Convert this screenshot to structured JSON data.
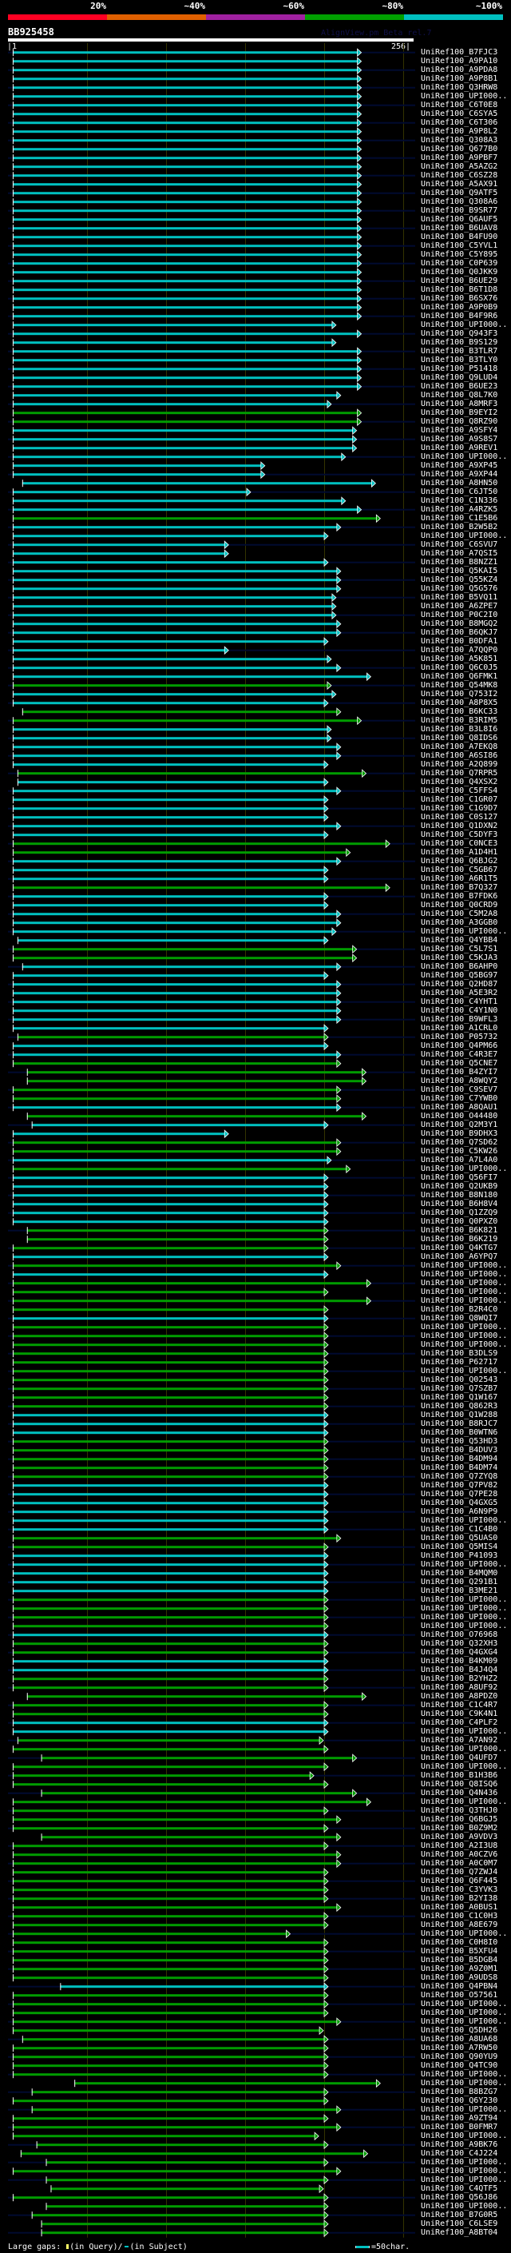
{
  "header": {
    "percent_labels": [
      "20%",
      "~40%",
      "~60%",
      "~80%",
      "~100%"
    ],
    "percent_colors": [
      "#ff0022",
      "#e06000",
      "#a020a0",
      "#00a000",
      "#00c0c0"
    ],
    "query_id": "BB925458",
    "credit": "AlignView.pm Beta rel.7",
    "query_start": "|1",
    "query_end": "256|"
  },
  "colors": {
    "c": "#00c0c0",
    "g": "#009c00",
    "unaligned": "#000a30",
    "grid": "#333300"
  },
  "query_length": 256,
  "rows": [
    [
      "UniRef100_B7FJC3",
      "c",
      4,
      222
    ],
    [
      "UniRef100_A9PA10",
      "c",
      4,
      222
    ],
    [
      "UniRef100_A9PDA8",
      "c",
      4,
      222
    ],
    [
      "UniRef100_A9P8B1",
      "c",
      4,
      222
    ],
    [
      "UniRef100_Q3HRW8",
      "c",
      4,
      222
    ],
    [
      "UniRef100_UPI000..",
      "c",
      4,
      222
    ],
    [
      "UniRef100_C6T0E8",
      "c",
      4,
      222
    ],
    [
      "UniRef100_C6SYA5",
      "c",
      4,
      222
    ],
    [
      "UniRef100_C6T306",
      "c",
      4,
      222
    ],
    [
      "UniRef100_A9P8L2",
      "c",
      4,
      222
    ],
    [
      "UniRef100_Q308A3",
      "c",
      4,
      222
    ],
    [
      "UniRef100_Q677B0",
      "c",
      4,
      222
    ],
    [
      "UniRef100_A9PBF7",
      "c",
      4,
      222
    ],
    [
      "UniRef100_A5AZG2",
      "c",
      4,
      222
    ],
    [
      "UniRef100_C6SZ28",
      "c",
      4,
      222
    ],
    [
      "UniRef100_A5AX91",
      "c",
      4,
      222
    ],
    [
      "UniRef100_Q9ATF5",
      "c",
      4,
      222
    ],
    [
      "UniRef100_Q308A6",
      "c",
      4,
      222
    ],
    [
      "UniRef100_B9SR77",
      "c",
      4,
      222
    ],
    [
      "UniRef100_Q6AUF5",
      "c",
      4,
      222
    ],
    [
      "UniRef100_B6UAV8",
      "c",
      4,
      222
    ],
    [
      "UniRef100_B4FU90",
      "c",
      4,
      222
    ],
    [
      "UniRef100_C5YVL1",
      "c",
      4,
      222
    ],
    [
      "UniRef100_C5Y895",
      "c",
      4,
      222
    ],
    [
      "UniRef100_C0P639",
      "c",
      4,
      222
    ],
    [
      "UniRef100_Q0JKK9",
      "c",
      4,
      222
    ],
    [
      "UniRef100_B6UE29",
      "c",
      4,
      222
    ],
    [
      "UniRef100_B6T1D8",
      "c",
      4,
      222
    ],
    [
      "UniRef100_B6SX76",
      "c",
      4,
      222
    ],
    [
      "UniRef100_A9P0B9",
      "c",
      4,
      222
    ],
    [
      "UniRef100_B4F9R6",
      "c",
      4,
      222
    ],
    [
      "UniRef100_UPI000..",
      "c",
      4,
      206
    ],
    [
      "UniRef100_Q943F3",
      "c",
      4,
      222
    ],
    [
      "UniRef100_B9S129",
      "c",
      4,
      206
    ],
    [
      "UniRef100_B3TLR7",
      "c",
      4,
      222
    ],
    [
      "UniRef100_B3TLY0",
      "c",
      4,
      222
    ],
    [
      "UniRef100_P51418",
      "c",
      4,
      222
    ],
    [
      "UniRef100_Q9LUD4",
      "c",
      4,
      222
    ],
    [
      "UniRef100_B6UE23",
      "c",
      4,
      222
    ],
    [
      "UniRef100_Q8L7K0",
      "c",
      4,
      209
    ],
    [
      "UniRef100_A8MRF3",
      "c",
      4,
      203
    ],
    [
      "UniRef100_B9EYI2",
      "g",
      4,
      222
    ],
    [
      "UniRef100_Q8RZ90",
      "g",
      4,
      222
    ],
    [
      "UniRef100_A9SFY4",
      "c",
      4,
      219
    ],
    [
      "UniRef100_A9S8S7",
      "c",
      4,
      219
    ],
    [
      "UniRef100_A9REV1",
      "c",
      4,
      219
    ],
    [
      "UniRef100_UPI000..",
      "c",
      4,
      212
    ],
    [
      "UniRef100_A9XP45",
      "c",
      4,
      161
    ],
    [
      "UniRef100_A9XP44",
      "c",
      4,
      161
    ],
    [
      "UniRef100_A8HN50",
      "c",
      10,
      231
    ],
    [
      "UniRef100_C6JT50",
      "c",
      4,
      152
    ],
    [
      "UniRef100_C1N336",
      "c",
      4,
      212
    ],
    [
      "UniRef100_A4RZK5",
      "c",
      4,
      222
    ],
    [
      "UniRef100_C1E5B6",
      "g",
      4,
      234
    ],
    [
      "UniRef100_B2W5B2",
      "c",
      4,
      209
    ],
    [
      "UniRef100_UPI000..",
      "c",
      4,
      201
    ],
    [
      "UniRef100_C6SVU7",
      "c",
      4,
      138
    ],
    [
      "UniRef100_A7QSI5",
      "c",
      4,
      138
    ],
    [
      "UniRef100_B8NZZ1",
      "c",
      4,
      201
    ],
    [
      "UniRef100_Q5KAI5",
      "c",
      4,
      209
    ],
    [
      "UniRef100_Q55KZ4",
      "c",
      4,
      209
    ],
    [
      "UniRef100_Q5G576",
      "c",
      4,
      209
    ],
    [
      "UniRef100_B5VQ11",
      "c",
      4,
      206
    ],
    [
      "UniRef100_A6ZPE7",
      "c",
      4,
      206
    ],
    [
      "UniRef100_P0C2I0",
      "c",
      4,
      206
    ],
    [
      "UniRef100_B8MGQ2",
      "c",
      4,
      209
    ],
    [
      "UniRef100_B6QKJ7",
      "c",
      4,
      209
    ],
    [
      "UniRef100_B0DFA1",
      "c",
      4,
      201
    ],
    [
      "UniRef100_A7QQP0",
      "c",
      4,
      138
    ],
    [
      "UniRef100_A5K851",
      "c",
      4,
      203
    ],
    [
      "UniRef100_Q6C0J5",
      "c",
      4,
      209
    ],
    [
      "UniRef100_Q6FMK1",
      "c",
      4,
      228
    ],
    [
      "UniRef100_Q54MK8",
      "g",
      4,
      203
    ],
    [
      "UniRef100_Q753I2",
      "c",
      4,
      206
    ],
    [
      "UniRef100_A8P8X5",
      "c",
      4,
      201
    ],
    [
      "UniRef100_B6KC33",
      "g",
      10,
      209
    ],
    [
      "UniRef100_B3RIM5",
      "g",
      4,
      222
    ],
    [
      "UniRef100_B3L8I6",
      "c",
      4,
      203
    ],
    [
      "UniRef100_Q8IDS6",
      "c",
      4,
      203
    ],
    [
      "UniRef100_A7EKQ8",
      "c",
      4,
      209
    ],
    [
      "UniRef100_A6SI86",
      "c",
      4,
      209
    ],
    [
      "UniRef100_A2Q899",
      "c",
      4,
      201
    ],
    [
      "UniRef100_Q7RPR5",
      "g",
      7,
      225
    ],
    [
      "UniRef100_Q4XSX2",
      "c",
      7,
      201
    ],
    [
      "UniRef100_C5FFS4",
      "c",
      4,
      209
    ],
    [
      "UniRef100_C1GR07",
      "c",
      4,
      201
    ],
    [
      "UniRef100_C1G9D7",
      "c",
      4,
      201
    ],
    [
      "UniRef100_C0S127",
      "c",
      4,
      201
    ],
    [
      "UniRef100_Q1DXN2",
      "c",
      4,
      209
    ],
    [
      "UniRef100_C5DYF3",
      "c",
      4,
      201
    ],
    [
      "UniRef100_C0NCE3",
      "g",
      4,
      240
    ],
    [
      "UniRef100_A1D4H1",
      "g",
      4,
      215
    ],
    [
      "UniRef100_Q6BJG2",
      "c",
      4,
      209
    ],
    [
      "UniRef100_C5GB67",
      "c",
      4,
      201
    ],
    [
      "UniRef100_A6R1T5",
      "c",
      4,
      201
    ],
    [
      "UniRef100_B7Q327",
      "g",
      4,
      240
    ],
    [
      "UniRef100_B7FDK6",
      "c",
      4,
      201
    ],
    [
      "UniRef100_Q0CRD9",
      "c",
      4,
      201
    ],
    [
      "UniRef100_C5M2A8",
      "c",
      4,
      209
    ],
    [
      "UniRef100_A3GGB0",
      "c",
      4,
      209
    ],
    [
      "UniRef100_UPI000..",
      "c",
      4,
      206
    ],
    [
      "UniRef100_Q4YBB4",
      "c",
      7,
      201
    ],
    [
      "UniRef100_C5L7S1",
      "g",
      4,
      219
    ],
    [
      "UniRef100_C5KJA3",
      "g",
      4,
      219
    ],
    [
      "UniRef100_B6AHP0",
      "c",
      10,
      209
    ],
    [
      "UniRef100_Q5BG97",
      "c",
      4,
      201
    ],
    [
      "UniRef100_Q2HD87",
      "c",
      4,
      209
    ],
    [
      "UniRef100_A5E3R2",
      "c",
      4,
      209
    ],
    [
      "UniRef100_C4YHT1",
      "c",
      4,
      209
    ],
    [
      "UniRef100_C4Y1N0",
      "c",
      4,
      209
    ],
    [
      "UniRef100_B9WFL3",
      "c",
      4,
      209
    ],
    [
      "UniRef100_A1CRL0",
      "c",
      4,
      201
    ],
    [
      "UniRef100_P05732",
      "g",
      7,
      201
    ],
    [
      "UniRef100_Q4PM66",
      "c",
      4,
      201
    ],
    [
      "UniRef100_C4R3E7",
      "c",
      4,
      209
    ],
    [
      "UniRef100_Q5CNE7",
      "g",
      4,
      209
    ],
    [
      "UniRef100_B4ZYI7",
      "g",
      13,
      225
    ],
    [
      "UniRef100_A8WQY2",
      "g",
      13,
      225
    ],
    [
      "UniRef100_C9SEV7",
      "g",
      4,
      209
    ],
    [
      "UniRef100_C7YWB0",
      "g",
      4,
      209
    ],
    [
      "UniRef100_A8QAU1",
      "c",
      4,
      209
    ],
    [
      "UniRef100_O44480",
      "g",
      13,
      225
    ],
    [
      "UniRef100_Q2M3Y1",
      "c",
      16,
      201
    ],
    [
      "UniRef100_B9DHX3",
      "c",
      4,
      138
    ],
    [
      "UniRef100_Q7SD62",
      "g",
      4,
      209
    ],
    [
      "UniRef100_C5KW26",
      "g",
      4,
      209
    ],
    [
      "UniRef100_A7L4A0",
      "c",
      4,
      203
    ],
    [
      "UniRef100_UPI000..",
      "g",
      4,
      215
    ],
    [
      "UniRef100_Q56FI7",
      "c",
      4,
      201
    ],
    [
      "UniRef100_Q2UKB9",
      "c",
      4,
      201
    ],
    [
      "UniRef100_B8N180",
      "c",
      4,
      201
    ],
    [
      "UniRef100_B6H8V4",
      "c",
      4,
      201
    ],
    [
      "UniRef100_Q1ZZQ9",
      "c",
      4,
      201
    ],
    [
      "UniRef100_Q0PXZ0",
      "c",
      4,
      201
    ],
    [
      "UniRef100_B6K821",
      "g",
      13,
      201
    ],
    [
      "UniRef100_B6K219",
      "g",
      13,
      201
    ],
    [
      "UniRef100_Q4KTG7",
      "g",
      4,
      201
    ],
    [
      "UniRef100_A6YPQ7",
      "c",
      4,
      201
    ],
    [
      "UniRef100_UPI000..",
      "g",
      4,
      209
    ],
    [
      "UniRef100_UPI000..",
      "c",
      4,
      201
    ],
    [
      "UniRef100_UPI000..",
      "g",
      4,
      228
    ],
    [
      "UniRef100_UPI000..",
      "g",
      4,
      201
    ],
    [
      "UniRef100_UPI000..",
      "g",
      4,
      228
    ],
    [
      "UniRef100_B2R4C0",
      "g",
      4,
      201
    ],
    [
      "UniRef100_Q8WQI7",
      "c",
      4,
      201
    ],
    [
      "UniRef100_UPI000..",
      "g",
      4,
      201
    ],
    [
      "UniRef100_UPI000..",
      "g",
      4,
      201
    ],
    [
      "UniRef100_UPI000..",
      "g",
      4,
      201
    ],
    [
      "UniRef100_B3DLS9",
      "g",
      4,
      201
    ],
    [
      "UniRef100_P62717",
      "g",
      4,
      201
    ],
    [
      "UniRef100_UPI000..",
      "g",
      4,
      201
    ],
    [
      "UniRef100_Q02543",
      "g",
      4,
      201
    ],
    [
      "UniRef100_Q7SZB7",
      "g",
      4,
      201
    ],
    [
      "UniRef100_Q1W167",
      "g",
      4,
      201
    ],
    [
      "UniRef100_Q862R3",
      "g",
      4,
      201
    ],
    [
      "UniRef100_Q1W288",
      "c",
      4,
      201
    ],
    [
      "UniRef100_B8RJC7",
      "c",
      4,
      201
    ],
    [
      "UniRef100_B0WTN6",
      "c",
      4,
      201
    ],
    [
      "UniRef100_Q53HD3",
      "g",
      4,
      201
    ],
    [
      "UniRef100_B4DUV3",
      "g",
      4,
      201
    ],
    [
      "UniRef100_B4DM94",
      "g",
      4,
      201
    ],
    [
      "UniRef100_B4DM74",
      "g",
      4,
      201
    ],
    [
      "UniRef100_Q7ZYQ8",
      "g",
      4,
      201
    ],
    [
      "UniRef100_Q7PV82",
      "c",
      4,
      201
    ],
    [
      "UniRef100_Q7PE28",
      "c",
      4,
      201
    ],
    [
      "UniRef100_Q4GXG5",
      "c",
      4,
      201
    ],
    [
      "UniRef100_A6N9P9",
      "c",
      4,
      201
    ],
    [
      "UniRef100_UPI000..",
      "c",
      4,
      201
    ],
    [
      "UniRef100_C1C4B0",
      "c",
      4,
      201
    ],
    [
      "UniRef100_Q5UAS0",
      "g",
      4,
      209
    ],
    [
      "UniRef100_Q5MIS4",
      "g",
      4,
      201
    ],
    [
      "UniRef100_P41093",
      "c",
      4,
      201
    ],
    [
      "UniRef100_UPI000..",
      "c",
      4,
      201
    ],
    [
      "UniRef100_B4MQM0",
      "c",
      4,
      201
    ],
    [
      "UniRef100_Q291B1",
      "c",
      4,
      201
    ],
    [
      "UniRef100_B3ME21",
      "c",
      4,
      201
    ],
    [
      "UniRef100_UPI000..",
      "g",
      4,
      201
    ],
    [
      "UniRef100_UPI000..",
      "g",
      4,
      201
    ],
    [
      "UniRef100_UPI000..",
      "g",
      4,
      201
    ],
    [
      "UniRef100_UPI000..",
      "g",
      4,
      201
    ],
    [
      "UniRef100_O76968",
      "c",
      4,
      201
    ],
    [
      "UniRef100_Q32XH3",
      "g",
      4,
      201
    ],
    [
      "UniRef100_Q4GXG4",
      "g",
      4,
      201
    ],
    [
      "UniRef100_B4KM09",
      "c",
      4,
      201
    ],
    [
      "UniRef100_B4J4Q4",
      "c",
      4,
      201
    ],
    [
      "UniRef100_B2YHZ2",
      "g",
      4,
      201
    ],
    [
      "UniRef100_A8UF92",
      "g",
      4,
      201
    ],
    [
      "UniRef100_A8PDZ0",
      "g",
      13,
      225
    ],
    [
      "UniRef100_C1C4R7",
      "g",
      4,
      201
    ],
    [
      "UniRef100_C9K4N1",
      "g",
      4,
      201
    ],
    [
      "UniRef100_C4PLF2",
      "c",
      4,
      201
    ],
    [
      "UniRef100_UPI000..",
      "c",
      4,
      201
    ],
    [
      "UniRef100_A7AN92",
      "g",
      7,
      198
    ],
    [
      "UniRef100_UPI000..",
      "g",
      4,
      201
    ],
    [
      "UniRef100_Q4UFD7",
      "g",
      22,
      219
    ],
    [
      "UniRef100_UPI000..",
      "g",
      4,
      201
    ],
    [
      "UniRef100_B1H3B6",
      "g",
      4,
      192
    ],
    [
      "UniRef100_Q8ISQ6",
      "g",
      4,
      201
    ],
    [
      "UniRef100_Q4N436",
      "g",
      22,
      219
    ],
    [
      "UniRef100_UPI000..",
      "g",
      4,
      228
    ],
    [
      "UniRef100_Q3THJ0",
      "g",
      4,
      201
    ],
    [
      "UniRef100_Q6BGJ5",
      "g",
      4,
      209
    ],
    [
      "UniRef100_B0Z9M2",
      "g",
      4,
      201
    ],
    [
      "UniRef100_A9VDV3",
      "g",
      22,
      209
    ],
    [
      "UniRef100_A2I3U8",
      "g",
      4,
      201
    ],
    [
      "UniRef100_A0CZV6",
      "g",
      4,
      209
    ],
    [
      "UniRef100_A0C0M7",
      "g",
      4,
      209
    ],
    [
      "UniRef100_Q7ZWJ4",
      "g",
      4,
      201
    ],
    [
      "UniRef100_Q6F445",
      "g",
      4,
      201
    ],
    [
      "UniRef100_C3YVK3",
      "g",
      4,
      201
    ],
    [
      "UniRef100_B2YI38",
      "g",
      4,
      201
    ],
    [
      "UniRef100_A0BUS1",
      "g",
      4,
      209
    ],
    [
      "UniRef100_C1C0H3",
      "g",
      4,
      201
    ],
    [
      "UniRef100_A8E679",
      "g",
      4,
      201
    ],
    [
      "UniRef100_UPI000..",
      "g",
      4,
      177
    ],
    [
      "UniRef100_C0H8I0",
      "g",
      4,
      201
    ],
    [
      "UniRef100_B5XFU4",
      "g",
      4,
      201
    ],
    [
      "UniRef100_B5DGB4",
      "g",
      4,
      201
    ],
    [
      "UniRef100_A9Z0M1",
      "g",
      4,
      201
    ],
    [
      "UniRef100_A9UDS8",
      "g",
      4,
      201
    ],
    [
      "UniRef100_Q4PBN4",
      "c",
      34,
      201
    ],
    [
      "UniRef100_O57561",
      "g",
      4,
      201
    ],
    [
      "UniRef100_UPI000..",
      "g",
      4,
      201
    ],
    [
      "UniRef100_UPI000..",
      "g",
      4,
      201
    ],
    [
      "UniRef100_UPI000..",
      "g",
      4,
      209
    ],
    [
      "UniRef100_Q5DH26",
      "g",
      4,
      198
    ],
    [
      "UniRef100_A8UA68",
      "g",
      10,
      201
    ],
    [
      "UniRef100_A7RW50",
      "g",
      4,
      201
    ],
    [
      "UniRef100_Q90YU9",
      "g",
      4,
      201
    ],
    [
      "UniRef100_Q4TC90",
      "g",
      4,
      201
    ],
    [
      "UniRef100_UPI000..",
      "g",
      4,
      201
    ],
    [
      "UniRef100_UPI000..",
      "g",
      43,
      234
    ],
    [
      "UniRef100_B8BZG7",
      "g",
      16,
      201
    ],
    [
      "UniRef100_Q6Y230",
      "g",
      4,
      201
    ],
    [
      "UniRef100_UPI000..",
      "g",
      16,
      209
    ],
    [
      "UniRef100_A9ZT94",
      "g",
      4,
      201
    ],
    [
      "UniRef100_B0FMR7",
      "g",
      4,
      209
    ],
    [
      "UniRef100_UPI000..",
      "g",
      4,
      195
    ],
    [
      "UniRef100_A9BK76",
      "g",
      19,
      201
    ],
    [
      "UniRef100_C4J224",
      "g",
      9,
      226
    ],
    [
      "UniRef100_UPI000..",
      "g",
      25,
      201
    ],
    [
      "UniRef100_UPI000..",
      "g",
      4,
      209
    ],
    [
      "UniRef100_UPI000..",
      "g",
      25,
      201
    ],
    [
      "UniRef100_C4QTF5",
      "g",
      28,
      198
    ],
    [
      "UniRef100_Q56J86",
      "g",
      4,
      201
    ],
    [
      "UniRef100_UPI000..",
      "g",
      25,
      201
    ],
    [
      "UniRef100_B7G0R5",
      "g",
      16,
      201
    ],
    [
      "UniRef100_C6LSE9",
      "g",
      22,
      201
    ],
    [
      "UniRef100_A8BT04",
      "g",
      22,
      201
    ]
  ],
  "footer": {
    "large_gaps_label": "Large gaps:",
    "in_query": "(in Query)/",
    "in_subject": "(in Subject)",
    "scale_label": "=50char."
  }
}
